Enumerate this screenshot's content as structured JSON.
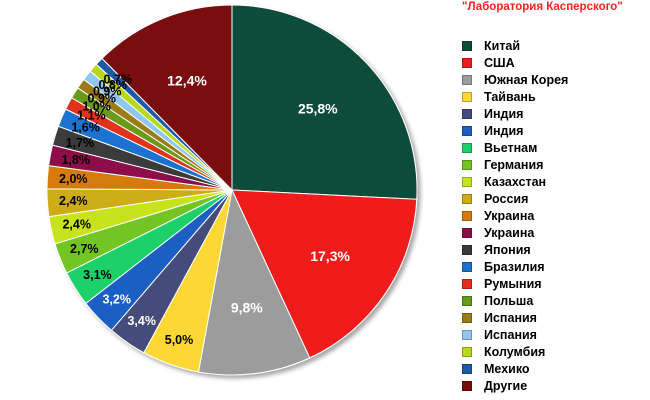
{
  "watermark": "\"Лаборатория Касперского\"",
  "chart_data": {
    "type": "pie",
    "title": "",
    "start_angle_deg": 0,
    "direction": "clockwise",
    "slices": [
      {
        "label": "Китай",
        "value": 25.8,
        "value_label": "25,8%",
        "color": "#0e4b3a",
        "label_color": "#ffffff"
      },
      {
        "label": "США",
        "value": 17.3,
        "value_label": "17,3%",
        "color": "#f01c1c",
        "label_color": "#ffffff"
      },
      {
        "label": "Южная Корея",
        "value": 9.8,
        "value_label": "9,8%",
        "color": "#9c9c9c",
        "label_color": "#ffffff"
      },
      {
        "label": "Тайвань",
        "value": 5.0,
        "value_label": "5,0%",
        "color": "#fdd835",
        "label_color": "#000000"
      },
      {
        "label": "Индия",
        "value": 3.4,
        "value_label": "3,4%",
        "color": "#454b7a",
        "label_color": "#ffffff"
      },
      {
        "label": "Индия",
        "value": 3.2,
        "value_label": "3,2%",
        "color": "#1c5fc4",
        "label_color": "#ffffff"
      },
      {
        "label": "Вьетнам",
        "value": 3.1,
        "value_label": "3,1%",
        "color": "#1ed06a",
        "label_color": "#000000"
      },
      {
        "label": "Германия",
        "value": 2.7,
        "value_label": "2,7%",
        "color": "#72c520",
        "label_color": "#000000"
      },
      {
        "label": "Казахстан",
        "value": 2.4,
        "value_label": "2,4%",
        "color": "#c6e31c",
        "label_color": "#000000"
      },
      {
        "label": "Россия",
        "value": 2.4,
        "value_label": "2,4%",
        "color": "#cdad12",
        "label_color": "#000000"
      },
      {
        "label": "Украина",
        "value": 2.0,
        "value_label": "2,0%",
        "color": "#d57a0a",
        "label_color": "#000000"
      },
      {
        "label": "Украина",
        "value": 1.8,
        "value_label": "1,8%",
        "color": "#8c1048",
        "label_color": "#000000"
      },
      {
        "label": "Япония",
        "value": 1.7,
        "value_label": "1,7%",
        "color": "#3a3a3a",
        "label_color": "#000000"
      },
      {
        "label": "Бразилия",
        "value": 1.6,
        "value_label": "1,6%",
        "color": "#1a72d0",
        "label_color": "#000000"
      },
      {
        "label": "Румыния",
        "value": 1.1,
        "value_label": "1,1%",
        "color": "#e0301c",
        "label_color": "#000000"
      },
      {
        "label": "Польша",
        "value": 1.0,
        "value_label": "1,0%",
        "color": "#6a9a1a",
        "label_color": "#000000"
      },
      {
        "label": "Испания",
        "value": 0.9,
        "value_label": "0,9%",
        "color": "#9a7c14",
        "label_color": "#000000"
      },
      {
        "label": "Испания",
        "value": 0.9,
        "value_label": "0,9%",
        "color": "#8fc7ee",
        "label_color": "#000000"
      },
      {
        "label": "Колумбия",
        "value": 0.8,
        "value_label": "0,8%",
        "color": "#b8d81a",
        "label_color": "#000000"
      },
      {
        "label": "Мехико",
        "value": 0.7,
        "value_label": "0,7%",
        "color": "#1a5aa8",
        "label_color": "#000000"
      },
      {
        "label": "Другие",
        "value": 12.4,
        "value_label": "12,4%",
        "color": "#7a0a0a",
        "label_color": "#ffffff"
      }
    ]
  }
}
